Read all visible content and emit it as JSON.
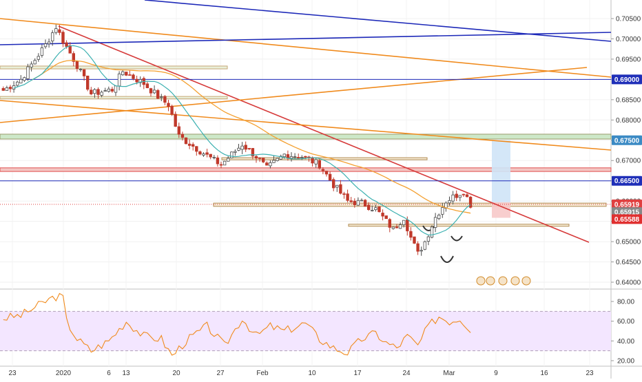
{
  "chart_data": [
    {
      "type": "candlestick",
      "ylim": [
        0.6395,
        0.7072
      ],
      "y_ticks": [
        "0.70500",
        "0.70000",
        "0.69500",
        "0.69000",
        "0.68500",
        "0.68000",
        "0.67500",
        "0.67000",
        "0.66500",
        "0.66000",
        "0.65500",
        "0.65000",
        "0.64500",
        "0.64000"
      ],
      "x_ticks": [
        "23",
        "2020",
        "6",
        "13",
        "20",
        "27",
        "Feb",
        "10",
        "17",
        "24",
        "Mar",
        "9",
        "16",
        "23"
      ],
      "price_badges": [
        {
          "label": "0.69000",
          "value": 0.69,
          "color": "#1f2fb8"
        },
        {
          "label": "0.67500",
          "value": 0.675,
          "color": "#3b8ac4"
        },
        {
          "label": "0.66500",
          "value": 0.665,
          "color": "#1f2fb8"
        },
        {
          "label": "0.65919",
          "value": 0.65919,
          "color": "#e04040"
        },
        {
          "label": "0.65915",
          "value": 0.65915,
          "color": "#888888"
        },
        {
          "label": "0.65588",
          "value": 0.65588,
          "color": "#e03030"
        }
      ],
      "close_path": [
        [
          0,
          0.6873
        ],
        [
          5,
          0.69
        ],
        [
          12,
          0.6985
        ],
        [
          15,
          0.703
        ],
        [
          17,
          0.6995
        ],
        [
          21,
          0.6935
        ],
        [
          25,
          0.6865
        ],
        [
          31,
          0.6875
        ],
        [
          34,
          0.692
        ],
        [
          40,
          0.689
        ],
        [
          45,
          0.685
        ],
        [
          47,
          0.6838
        ],
        [
          50,
          0.676
        ],
        [
          55,
          0.673
        ],
        [
          60,
          0.67
        ],
        [
          62,
          0.669
        ],
        [
          68,
          0.674
        ],
        [
          72,
          0.671
        ],
        [
          75,
          0.668
        ],
        [
          80,
          0.6715
        ],
        [
          85,
          0.671
        ],
        [
          90,
          0.669
        ],
        [
          94,
          0.664
        ],
        [
          98,
          0.66
        ],
        [
          102,
          0.6595
        ],
        [
          106,
          0.658
        ],
        [
          109,
          0.655
        ],
        [
          111,
          0.653
        ],
        [
          114,
          0.656
        ],
        [
          116,
          0.651
        ],
        [
          118,
          0.647
        ],
        [
          120,
          0.65
        ],
        [
          123,
          0.656
        ],
        [
          126,
          0.66
        ],
        [
          129,
          0.6615
        ],
        [
          131,
          0.6625
        ],
        [
          133,
          0.6592
        ]
      ]
    },
    {
      "type": "line",
      "ylim": [
        16,
        92
      ],
      "y_ticks": [
        "80.00",
        "60.00",
        "40.00",
        "20.00"
      ],
      "band": [
        30,
        70
      ],
      "series": [
        {
          "values": [
            [
              0,
              63
            ],
            [
              5,
              66
            ],
            [
              10,
              76
            ],
            [
              13,
              82
            ],
            [
              15,
              85
            ],
            [
              17,
              84
            ],
            [
              18,
              60
            ],
            [
              21,
              42
            ],
            [
              25,
              30
            ],
            [
              30,
              40
            ],
            [
              35,
              60
            ],
            [
              40,
              45
            ],
            [
              45,
              42
            ],
            [
              48,
              25
            ],
            [
              52,
              40
            ],
            [
              58,
              55
            ],
            [
              63,
              35
            ],
            [
              68,
              63
            ],
            [
              72,
              45
            ],
            [
              76,
              55
            ],
            [
              80,
              50
            ],
            [
              86,
              58
            ],
            [
              90,
              42
            ],
            [
              94,
              33
            ],
            [
              98,
              28
            ],
            [
              102,
              42
            ],
            [
              106,
              48
            ],
            [
              109,
              38
            ],
            [
              112,
              33
            ],
            [
              115,
              45
            ],
            [
              118,
              35
            ],
            [
              121,
              55
            ],
            [
              124,
              65
            ],
            [
              127,
              60
            ],
            [
              130,
              63
            ],
            [
              133,
              52
            ]
          ]
        }
      ]
    }
  ],
  "colors": {
    "price_up": "#4a4a4a",
    "price_down": "#c0392b",
    "ma_fast": "#3ab0b0",
    "ma_slow": "#f4a030",
    "trend_red": "#d63a3a",
    "trend_orange": "#f08a1c",
    "trend_blue": "#1c28b8",
    "rsi_line": "#f08a1c",
    "rsi_band": "#f3e6ff",
    "axis_text": "#333333"
  }
}
